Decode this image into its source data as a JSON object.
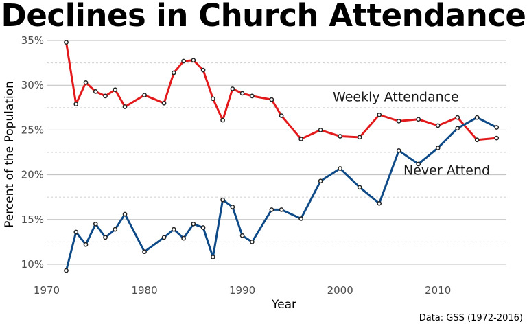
{
  "chart_data": {
    "type": "line",
    "title": "Declines in Church Attendance",
    "xlabel": "Year",
    "ylabel": "Percent of the Population",
    "caption": "Data: GSS (1972-2016)",
    "xlim": [
      1970,
      2017
    ],
    "ylim": [
      9,
      36
    ],
    "x_ticks": [
      1970,
      1980,
      1990,
      2000,
      2010
    ],
    "y_ticks": [
      10,
      15,
      20,
      25,
      30,
      35
    ],
    "y_tick_labels": [
      "10%",
      "15%",
      "20%",
      "25%",
      "30%",
      "35%"
    ],
    "grid": true,
    "series": [
      {
        "name": "Weekly Attendance",
        "color": "#e31a1c",
        "x": [
          1972,
          1973,
          1974,
          1975,
          1976,
          1977,
          1978,
          1980,
          1982,
          1983,
          1984,
          1985,
          1986,
          1987,
          1988,
          1989,
          1990,
          1991,
          1993,
          1994,
          1996,
          1998,
          2000,
          2002,
          2004,
          2006,
          2008,
          2010,
          2012,
          2014,
          2016
        ],
        "y": [
          34.8,
          27.9,
          30.3,
          29.3,
          28.8,
          29.5,
          27.6,
          28.9,
          28.0,
          31.4,
          32.7,
          32.8,
          31.7,
          28.5,
          26.1,
          29.6,
          29.1,
          28.8,
          28.4,
          26.6,
          24.0,
          25.0,
          24.3,
          24.2,
          26.7,
          26.0,
          26.2,
          25.5,
          26.4,
          23.9,
          24.1
        ]
      },
      {
        "name": "Never Attend",
        "color": "#0d4a87",
        "x": [
          1972,
          1973,
          1974,
          1975,
          1976,
          1977,
          1978,
          1980,
          1982,
          1983,
          1984,
          1985,
          1986,
          1987,
          1988,
          1989,
          1990,
          1991,
          1993,
          1994,
          1996,
          1998,
          2000,
          2002,
          2004,
          2006,
          2008,
          2010,
          2012,
          2014,
          2016
        ],
        "y": [
          9.3,
          13.6,
          12.2,
          14.5,
          13.0,
          13.9,
          15.6,
          11.4,
          13.0,
          13.9,
          12.9,
          14.5,
          14.1,
          10.8,
          17.2,
          16.4,
          13.2,
          12.5,
          16.1,
          16.1,
          15.1,
          19.3,
          20.7,
          18.6,
          16.8,
          22.7,
          21.2,
          23.0,
          25.2,
          26.4,
          25.3
        ]
      }
    ],
    "annotations": [
      {
        "text": "Weekly Attendance",
        "x": 2005.7,
        "y": 28.2
      },
      {
        "text": "Never Attend",
        "x": 2010.9,
        "y": 20.0
      }
    ]
  }
}
